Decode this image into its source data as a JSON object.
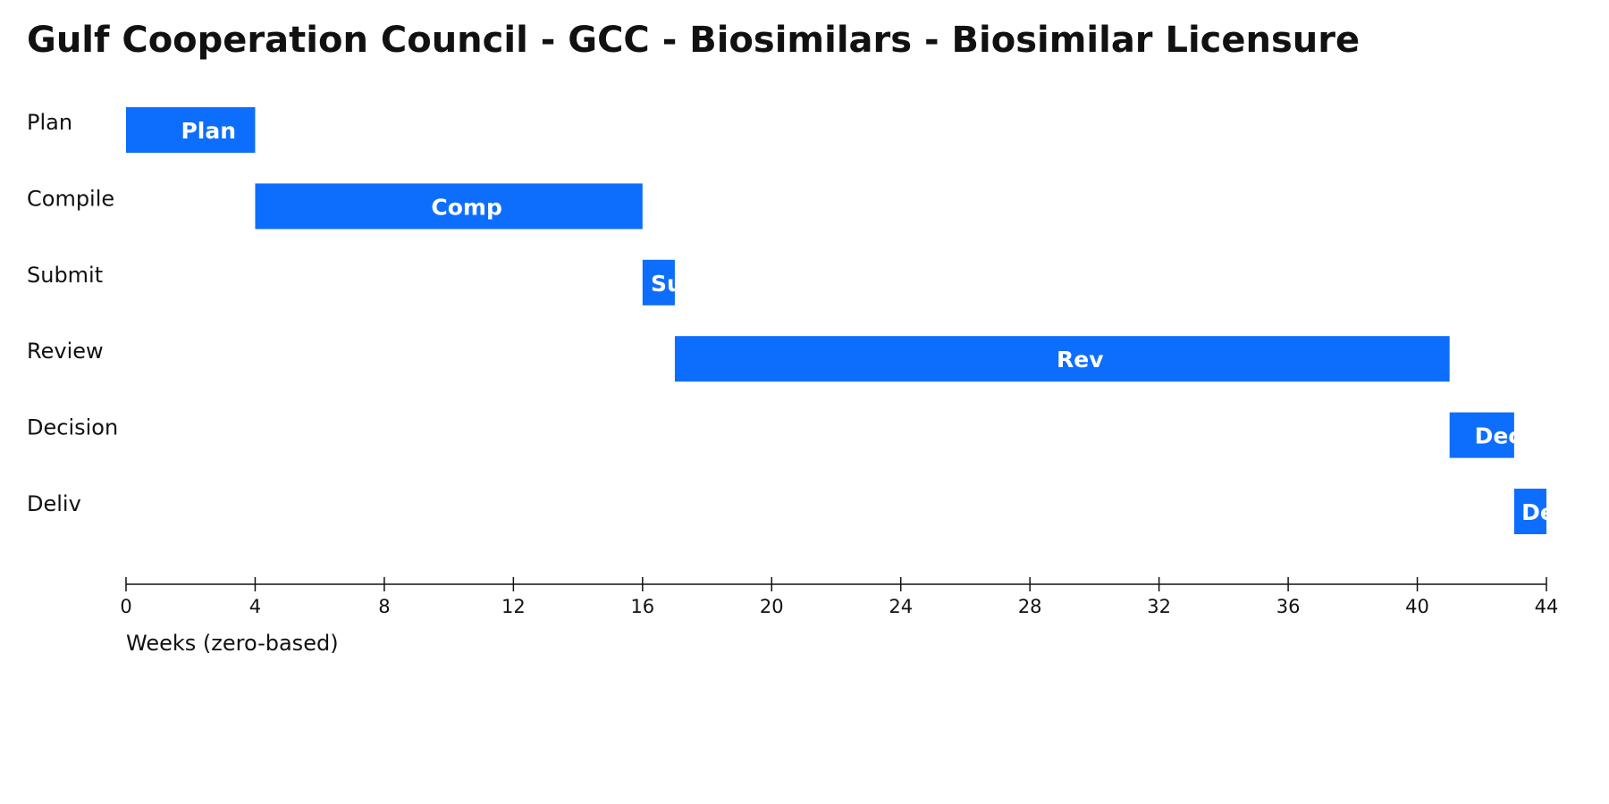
{
  "chart_data": {
    "type": "gantt",
    "title": "Gulf Cooperation Council - GCC - Biosimilars - Biosimilar Licensure",
    "categories": [
      "Plan",
      "Compile",
      "Submit",
      "Review",
      "Decision",
      "Deliv"
    ],
    "starts": [
      0,
      4,
      16,
      17,
      41,
      43
    ],
    "ends": [
      4,
      16,
      17,
      41,
      43,
      44
    ],
    "bar_labels": [
      "Plan",
      "Comp",
      "Su",
      "Rev",
      "Dec",
      "De"
    ],
    "color": "#0d6efd",
    "xlim": [
      0,
      44
    ],
    "xticks": [
      0,
      4,
      8,
      12,
      16,
      20,
      24,
      28,
      32,
      36,
      40,
      44
    ],
    "xlabel": "Weeks (zero-based)"
  }
}
